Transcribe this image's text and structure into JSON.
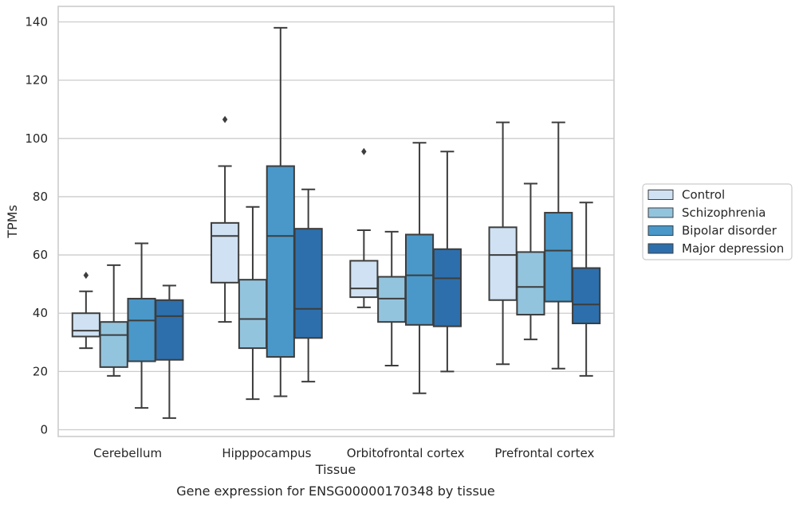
{
  "chart_data": {
    "type": "box",
    "caption": "Gene expression for ENSG00000170348 by tissue",
    "xlabel": "Tissue",
    "ylabel": "TPMs",
    "ylim": [
      -2,
      145
    ],
    "yticks": [
      0,
      20,
      40,
      60,
      80,
      100,
      120,
      140
    ],
    "grid": true,
    "legend_position": "right",
    "categories": [
      "Cerebellum",
      "Hipppocampus",
      "Orbitofrontal cortex",
      "Prefrontal cortex"
    ],
    "series": [
      {
        "name": "Control",
        "color": "#cfe1f2",
        "boxes": [
          {
            "q1": 32,
            "median": 34,
            "q3": 40,
            "whisker_low": 28,
            "whisker_high": 47.5,
            "outliers": [
              53
            ]
          },
          {
            "q1": 50.5,
            "median": 66.5,
            "q3": 71,
            "whisker_low": 37,
            "whisker_high": 90.5,
            "outliers": [
              106.5
            ]
          },
          {
            "q1": 45.5,
            "median": 48.5,
            "q3": 58,
            "whisker_low": 42,
            "whisker_high": 68.5,
            "outliers": [
              95.5
            ]
          },
          {
            "q1": 44.5,
            "median": 60,
            "q3": 69.5,
            "whisker_low": 22.5,
            "whisker_high": 105.5,
            "outliers": []
          }
        ]
      },
      {
        "name": "Schizophrenia",
        "color": "#93c4de",
        "boxes": [
          {
            "q1": 21.5,
            "median": 32.5,
            "q3": 37,
            "whisker_low": 18.5,
            "whisker_high": 56.5,
            "outliers": []
          },
          {
            "q1": 28,
            "median": 38,
            "q3": 51.5,
            "whisker_low": 10.5,
            "whisker_high": 76.5,
            "outliers": []
          },
          {
            "q1": 37,
            "median": 45,
            "q3": 52.5,
            "whisker_low": 22,
            "whisker_high": 68,
            "outliers": []
          },
          {
            "q1": 39.5,
            "median": 49,
            "q3": 61,
            "whisker_low": 31,
            "whisker_high": 84.5,
            "outliers": []
          }
        ]
      },
      {
        "name": "Bipolar disorder",
        "color": "#4a98c9",
        "boxes": [
          {
            "q1": 23.5,
            "median": 37.5,
            "q3": 45,
            "whisker_low": 7.5,
            "whisker_high": 64,
            "outliers": []
          },
          {
            "q1": 25,
            "median": 66.5,
            "q3": 90.5,
            "whisker_low": 11.5,
            "whisker_high": 138,
            "outliers": []
          },
          {
            "q1": 36,
            "median": 53,
            "q3": 67,
            "whisker_low": 12.5,
            "whisker_high": 98.5,
            "outliers": []
          },
          {
            "q1": 44,
            "median": 61.5,
            "q3": 74.5,
            "whisker_low": 21,
            "whisker_high": 105.5,
            "outliers": []
          }
        ]
      },
      {
        "name": "Major depression",
        "color": "#2d6fac",
        "boxes": [
          {
            "q1": 24,
            "median": 39,
            "q3": 44.5,
            "whisker_low": 4,
            "whisker_high": 49.5,
            "outliers": []
          },
          {
            "q1": 31.5,
            "median": 41.5,
            "q3": 69,
            "whisker_low": 16.5,
            "whisker_high": 82.5,
            "outliers": []
          },
          {
            "q1": 35.5,
            "median": 52,
            "q3": 62,
            "whisker_low": 20,
            "whisker_high": 95.5,
            "outliers": []
          },
          {
            "q1": 36.5,
            "median": 43,
            "q3": 55.5,
            "whisker_low": 18.5,
            "whisker_high": 78,
            "outliers": []
          }
        ]
      }
    ]
  }
}
